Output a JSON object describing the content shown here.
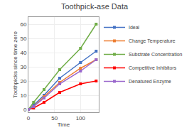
{
  "chart_data": {
    "type": "line",
    "title": "Toothpick-ase Data",
    "xlabel": "Time",
    "ylabel": "Toothpicks since time zero",
    "x": [
      0,
      10,
      30,
      60,
      100,
      130
    ],
    "series": [
      {
        "name": "Ideal",
        "color": "#4472C4",
        "values": [
          0,
          3,
          10,
          22,
          33,
          41
        ]
      },
      {
        "name": "Change Temperature",
        "color": "#ED7D31",
        "values": [
          0,
          2,
          9,
          19,
          29,
          35
        ]
      },
      {
        "name": "Substrate Concentration",
        "color": "#70AD47",
        "values": [
          0,
          5,
          14,
          28,
          43,
          60
        ]
      },
      {
        "name": "Competitive Inhibitors",
        "color": "#FF0000",
        "values": [
          0,
          1,
          5,
          12,
          18,
          20
        ]
      },
      {
        "name": "Denatured Enzyme",
        "color": "#9966CC",
        "values": [
          0,
          2,
          8,
          18,
          27,
          35
        ]
      }
    ],
    "xlim": [
      0,
      135
    ],
    "ylim": [
      -2,
      65
    ],
    "xticks": [
      0,
      50,
      100
    ],
    "yticks": [
      0,
      10,
      20,
      30,
      40,
      50,
      60
    ],
    "grid": true,
    "legend": "right",
    "marker": "square",
    "line_style": "solid"
  }
}
